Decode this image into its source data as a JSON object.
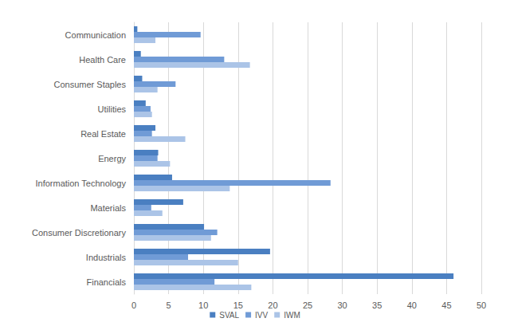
{
  "chart_data": {
    "type": "bar",
    "orientation": "horizontal",
    "categories": [
      "Communication",
      "Health Care",
      "Consumer Staples",
      "Utilities",
      "Real Estate",
      "Energy",
      "Information Technology",
      "Materials",
      "Consumer Discretionary",
      "Industrials",
      "Financials"
    ],
    "series": [
      {
        "name": "SVAL",
        "color": "#4a7fc1",
        "values": [
          0.5,
          1.0,
          1.2,
          1.7,
          3.1,
          3.5,
          5.5,
          7.1,
          10.1,
          19.6,
          46.0
        ]
      },
      {
        "name": "IVV",
        "color": "#709bd6",
        "values": [
          9.6,
          13.0,
          6.0,
          2.4,
          2.6,
          3.4,
          28.3,
          2.5,
          12.0,
          7.8,
          11.6
        ]
      },
      {
        "name": "IWM",
        "color": "#abc4e7",
        "values": [
          3.1,
          16.7,
          3.4,
          2.6,
          7.4,
          5.2,
          13.8,
          4.1,
          11.1,
          15.0,
          16.9
        ]
      }
    ],
    "xlim": [
      0,
      50
    ],
    "xticks": [
      0,
      5,
      10,
      15,
      20,
      25,
      30,
      35,
      40,
      45,
      50
    ],
    "grid": true,
    "legend": "bottom"
  }
}
